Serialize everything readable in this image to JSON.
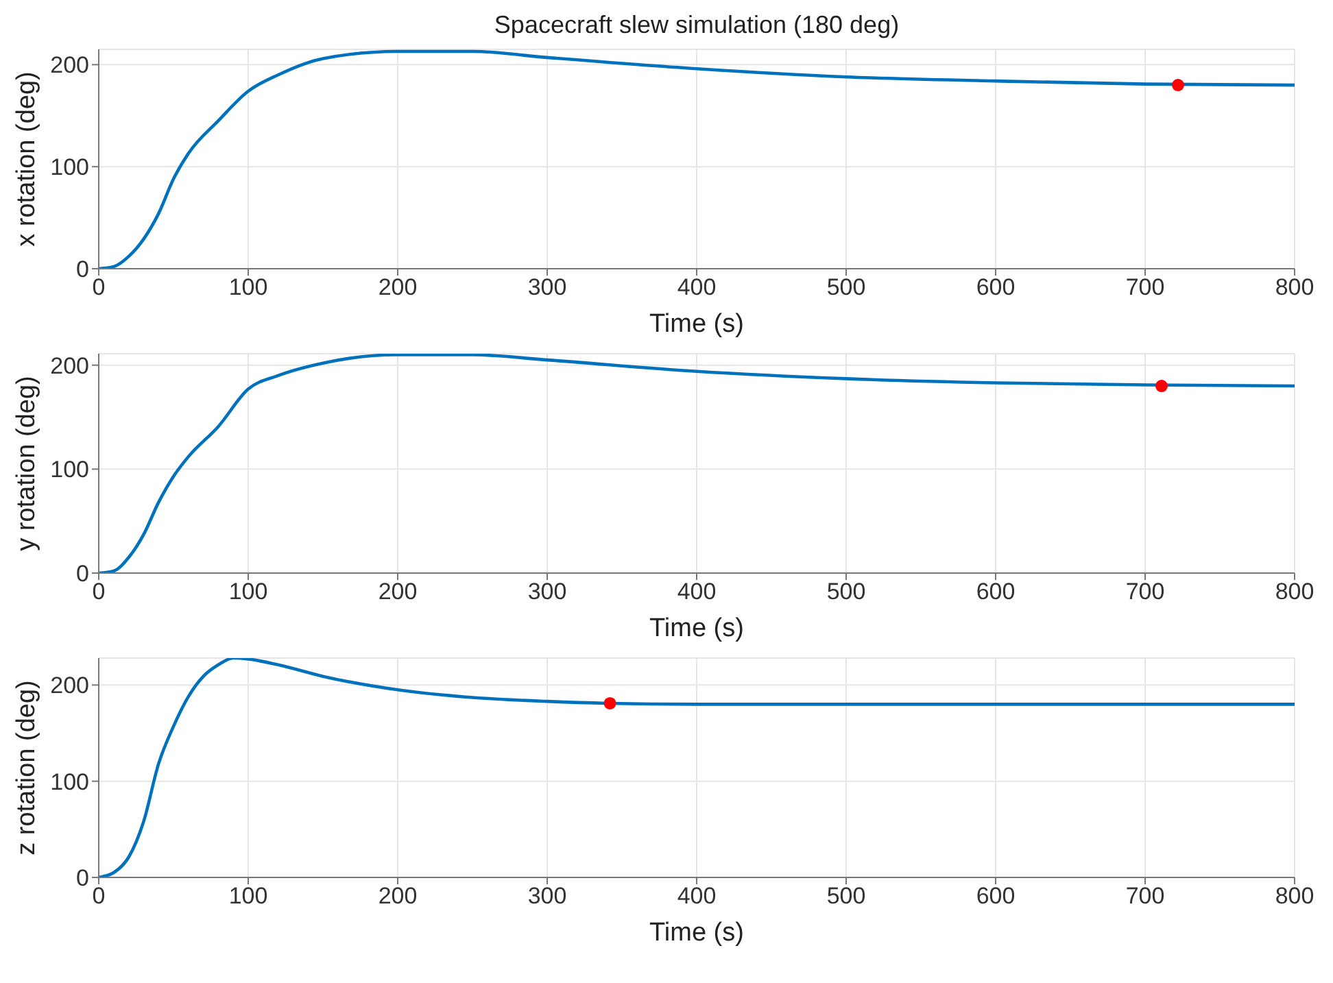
{
  "chart_data": [
    {
      "type": "line",
      "title": "Spacecraft slew simulation (180 deg)",
      "xlabel": "Time (s)",
      "ylabel": "x rotation (deg)",
      "xlim": [
        0,
        800
      ],
      "xticks": [
        0,
        100,
        200,
        300,
        400,
        500,
        600,
        700,
        800
      ],
      "ylim": [
        0,
        215
      ],
      "yticks": [
        0,
        100,
        200
      ],
      "grid": true,
      "line_style": "solid",
      "series": [
        {
          "type": "line",
          "color": "#0072bd",
          "marker": "none",
          "x": [
            0,
            10,
            20,
            30,
            40,
            50,
            60,
            80,
            100,
            120,
            150,
            200,
            250,
            300,
            400,
            500,
            600,
            700,
            800
          ],
          "values": [
            0,
            2,
            12,
            29,
            54,
            88,
            113,
            145,
            174,
            190,
            206,
            213,
            213,
            207,
            196,
            188,
            184,
            181,
            180
          ]
        },
        {
          "type": "scatter",
          "color": "#ff0000",
          "marker": "circle",
          "x": [
            722
          ],
          "values": [
            180
          ]
        }
      ]
    },
    {
      "type": "line",
      "xlabel": "Time (s)",
      "ylabel": "y rotation (deg)",
      "xlim": [
        0,
        800
      ],
      "xticks": [
        0,
        100,
        200,
        300,
        400,
        500,
        600,
        700,
        800
      ],
      "ylim": [
        0,
        211
      ],
      "yticks": [
        0,
        100,
        200
      ],
      "grid": true,
      "line_style": "solid",
      "series": [
        {
          "type": "line",
          "color": "#0072bd",
          "marker": "none",
          "x": [
            0,
            10,
            20,
            30,
            40,
            50,
            60,
            80,
            100,
            120,
            150,
            200,
            250,
            300,
            400,
            500,
            600,
            700,
            800
          ],
          "values": [
            0,
            2,
            15,
            37,
            68,
            93,
            112,
            141,
            177,
            190,
            202,
            210,
            210,
            205,
            194,
            187,
            183,
            181,
            180
          ]
        },
        {
          "type": "scatter",
          "color": "#ff0000",
          "marker": "circle",
          "x": [
            711
          ],
          "values": [
            180
          ]
        }
      ]
    },
    {
      "type": "line",
      "xlabel": "Time (s)",
      "ylabel": "z rotation (deg)",
      "xlim": [
        0,
        800
      ],
      "xticks": [
        0,
        100,
        200,
        300,
        400,
        500,
        600,
        700,
        800
      ],
      "ylim": [
        0,
        228
      ],
      "yticks": [
        0,
        100,
        200
      ],
      "grid": true,
      "line_style": "solid",
      "series": [
        {
          "type": "line",
          "color": "#0072bd",
          "marker": "none",
          "x": [
            0,
            10,
            20,
            30,
            40,
            50,
            60,
            70,
            80,
            90,
            100,
            120,
            150,
            200,
            250,
            300,
            340,
            400,
            500,
            600,
            700,
            800
          ],
          "values": [
            0,
            5,
            21,
            58,
            118,
            157,
            188,
            209,
            221,
            228,
            227,
            221,
            209,
            195,
            187,
            183,
            181,
            180,
            180,
            180,
            180,
            180
          ]
        },
        {
          "type": "scatter",
          "color": "#ff0000",
          "marker": "circle",
          "x": [
            342
          ],
          "values": [
            181
          ]
        }
      ]
    }
  ]
}
